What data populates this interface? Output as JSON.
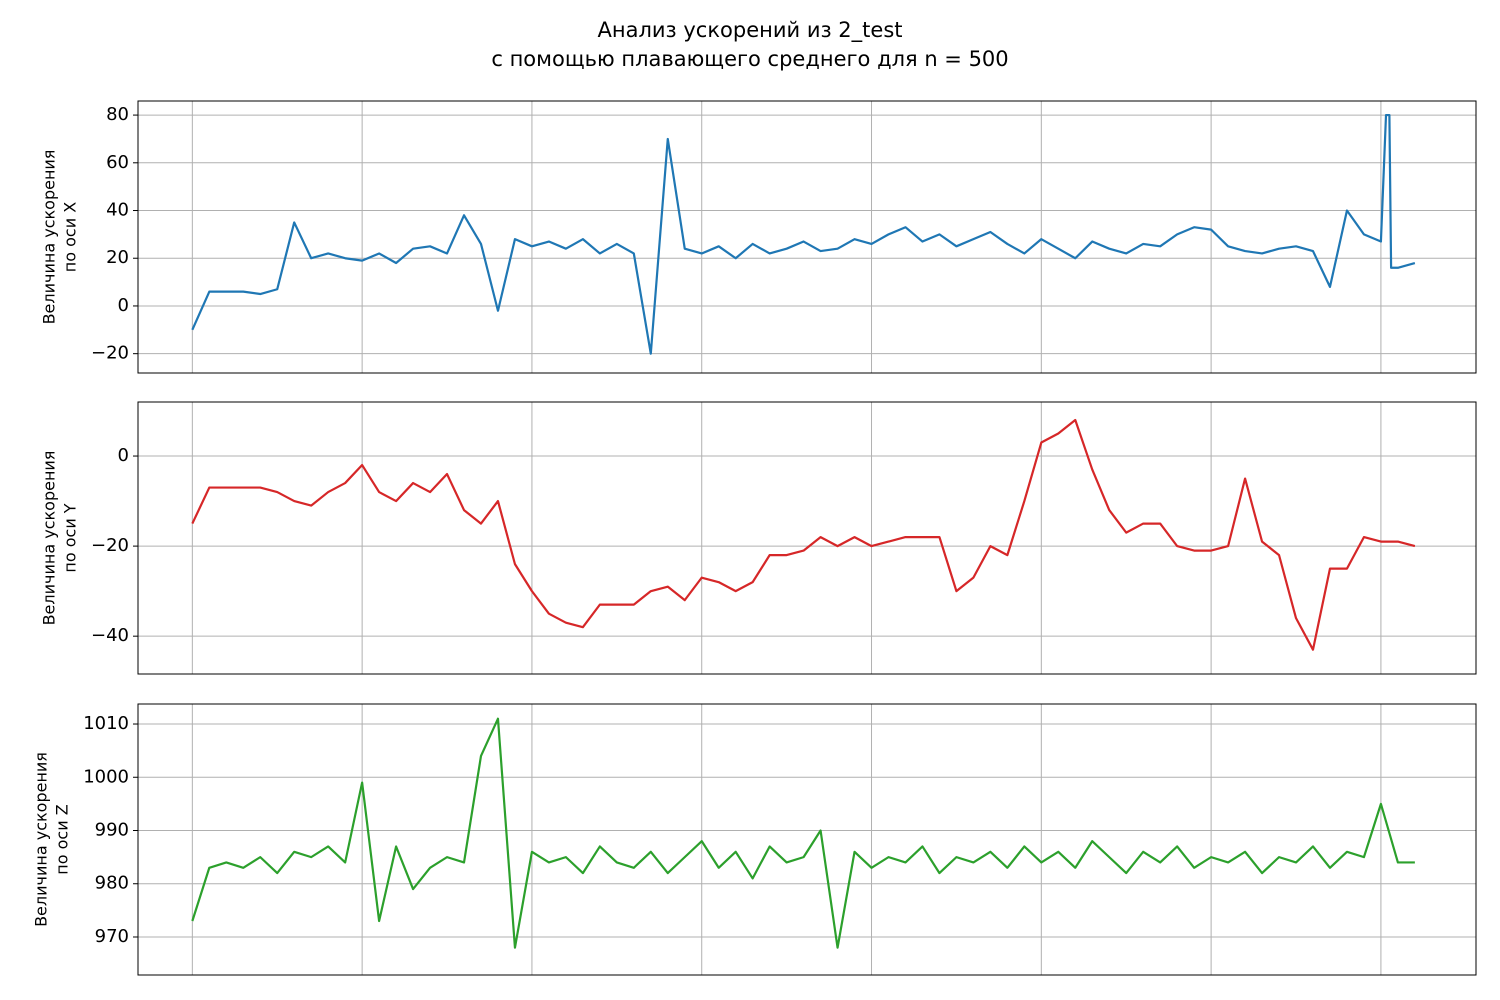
{
  "title": [
    "Анализ ускорений из 2_test",
    "с помощью плавающего среднего для n = 500"
  ],
  "chart_data": [
    {
      "type": "line",
      "color": "#1f77b4",
      "grid": true,
      "ylabel": [
        "Величина ускорения",
        "по оси X"
      ],
      "xlim": [
        -0.32,
        7.56
      ],
      "xticks": [
        0,
        1,
        2,
        3,
        4,
        5,
        6,
        7
      ],
      "ylim": [
        -28.1,
        85.9
      ],
      "yticks": [
        {
          "value": -20,
          "label": "−20"
        },
        0,
        20,
        40,
        60,
        80
      ],
      "x": [
        0,
        0.1,
        0.2,
        0.3,
        0.4,
        0.5,
        0.6,
        0.7,
        0.8,
        0.9,
        1,
        1.1,
        1.2,
        1.3,
        1.4,
        1.5,
        1.6,
        1.7,
        1.8,
        1.9,
        2,
        2.1,
        2.2,
        2.3,
        2.4,
        2.5,
        2.6,
        2.7,
        2.8,
        2.9,
        3,
        3.1,
        3.2,
        3.3,
        3.4,
        3.5,
        3.6,
        3.7,
        3.8,
        3.9,
        4,
        4.1,
        4.2,
        4.3,
        4.4,
        4.5,
        4.6,
        4.7,
        4.8,
        4.9,
        5,
        5.1,
        5.2,
        5.3,
        5.4,
        5.5,
        5.6,
        5.7,
        5.8,
        5.9,
        6,
        6.1,
        6.2,
        6.3,
        6.4,
        6.5,
        6.6,
        6.7,
        6.8,
        6.9,
        7,
        7.03,
        7.05,
        7.06,
        7.1,
        7.2
      ],
      "values": [
        -10,
        6,
        6,
        6,
        5,
        7,
        35,
        20,
        22,
        20,
        19,
        22,
        18,
        24,
        25,
        22,
        38,
        26,
        -2,
        28,
        25,
        27,
        24,
        28,
        22,
        26,
        22,
        -20,
        70,
        24,
        22,
        25,
        20,
        26,
        22,
        24,
        27,
        23,
        24,
        28,
        26,
        30,
        33,
        27,
        30,
        25,
        28,
        31,
        26,
        22,
        28,
        24,
        20,
        27,
        24,
        22,
        26,
        25,
        30,
        33,
        32,
        25,
        23,
        22,
        24,
        25,
        23,
        8,
        40,
        30,
        27,
        80,
        80,
        16,
        16,
        18
      ]
    },
    {
      "type": "line",
      "color": "#d62728",
      "grid": true,
      "ylabel": [
        "Величина ускорения",
        "по оси Y"
      ],
      "xlim": [
        -0.32,
        7.56
      ],
      "xticks": [
        0,
        1,
        2,
        3,
        4,
        5,
        6,
        7
      ],
      "ylim": [
        -48.4,
        12
      ],
      "yticks": [
        {
          "value": -40,
          "label": "−40"
        },
        {
          "value": -20,
          "label": "−20"
        },
        0
      ],
      "x": [
        0,
        0.1,
        0.2,
        0.3,
        0.4,
        0.5,
        0.6,
        0.7,
        0.8,
        0.9,
        1,
        1.1,
        1.2,
        1.3,
        1.4,
        1.5,
        1.6,
        1.7,
        1.8,
        1.9,
        2,
        2.1,
        2.2,
        2.3,
        2.4,
        2.5,
        2.6,
        2.7,
        2.8,
        2.9,
        3,
        3.1,
        3.2,
        3.3,
        3.4,
        3.5,
        3.6,
        3.7,
        3.8,
        3.9,
        4,
        4.1,
        4.2,
        4.3,
        4.4,
        4.5,
        4.6,
        4.7,
        4.8,
        4.9,
        5,
        5.1,
        5.2,
        5.3,
        5.4,
        5.5,
        5.6,
        5.7,
        5.8,
        5.9,
        6,
        6.1,
        6.2,
        6.3,
        6.4,
        6.5,
        6.6,
        6.7,
        6.8,
        6.9,
        7,
        7.1,
        7.2
      ],
      "values": [
        -15,
        -7,
        -7,
        -7,
        -7,
        -8,
        -10,
        -11,
        -8,
        -6,
        -2,
        -8,
        -10,
        -6,
        -8,
        -4,
        -12,
        -15,
        -10,
        -24,
        -30,
        -35,
        -37,
        -38,
        -33,
        -33,
        -33,
        -30,
        -29,
        -32,
        -27,
        -28,
        -30,
        -28,
        -22,
        -22,
        -21,
        -18,
        -20,
        -18,
        -20,
        -19,
        -18,
        -18,
        -18,
        -30,
        -27,
        -20,
        -22,
        -10,
        3,
        5,
        8,
        -3,
        -12,
        -17,
        -15,
        -15,
        -20,
        -21,
        -21,
        -20,
        -5,
        -19,
        -22,
        -36,
        -43,
        -25,
        -25,
        -18,
        -19,
        -19,
        -20
      ]
    },
    {
      "type": "line",
      "color": "#2ca02c",
      "grid": true,
      "ylabel": [
        "Величина ускорения",
        "по оси Z"
      ],
      "xlim": [
        -0.32,
        7.56
      ],
      "xticks": [
        0,
        1,
        2,
        3,
        4,
        5,
        6,
        7
      ],
      "ylim": [
        962.86,
        1013.76
      ],
      "yticks": [
        970,
        980,
        990,
        1000,
        1010
      ],
      "x": [
        0,
        0.1,
        0.2,
        0.3,
        0.4,
        0.5,
        0.6,
        0.7,
        0.8,
        0.9,
        1,
        1.1,
        1.2,
        1.3,
        1.4,
        1.5,
        1.6,
        1.7,
        1.8,
        1.9,
        2,
        2.1,
        2.2,
        2.3,
        2.4,
        2.5,
        2.6,
        2.7,
        2.8,
        2.9,
        3,
        3.1,
        3.2,
        3.3,
        3.4,
        3.5,
        3.6,
        3.7,
        3.8,
        3.9,
        4,
        4.1,
        4.2,
        4.3,
        4.4,
        4.5,
        4.6,
        4.7,
        4.8,
        4.9,
        5,
        5.1,
        5.2,
        5.3,
        5.4,
        5.5,
        5.6,
        5.7,
        5.8,
        5.9,
        6,
        6.1,
        6.2,
        6.3,
        6.4,
        6.5,
        6.6,
        6.7,
        6.8,
        6.9,
        7,
        7.1,
        7.2
      ],
      "values": [
        973,
        983,
        984,
        983,
        985,
        982,
        986,
        985,
        987,
        984,
        999,
        973,
        987,
        979,
        983,
        985,
        984,
        1004,
        1011,
        968,
        986,
        984,
        985,
        982,
        987,
        984,
        983,
        986,
        982,
        985,
        988,
        983,
        986,
        981,
        987,
        984,
        985,
        990,
        968,
        986,
        983,
        985,
        984,
        987,
        982,
        985,
        984,
        986,
        983,
        987,
        984,
        986,
        983,
        988,
        985,
        982,
        986,
        984,
        987,
        983,
        985,
        984,
        986,
        982,
        985,
        984,
        987,
        983,
        986,
        985,
        995,
        984,
        984
      ]
    }
  ]
}
